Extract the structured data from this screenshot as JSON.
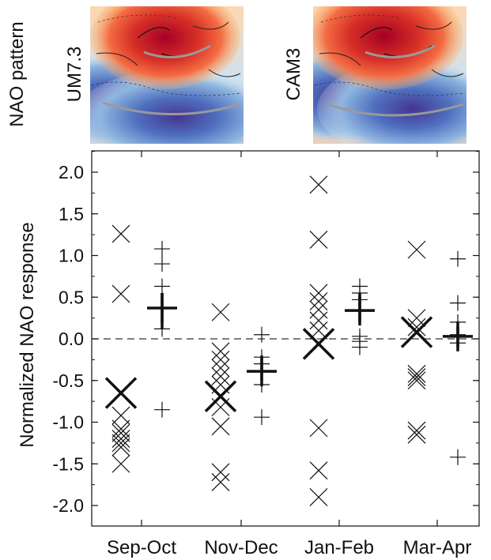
{
  "header": {
    "row_label": "NAO pattern",
    "panels": [
      {
        "label": "UM7.3"
      },
      {
        "label": "CAM3"
      }
    ]
  },
  "chart_data": {
    "type": "scatter",
    "title": "",
    "xlabel": "",
    "ylabel": "Normalized NAO response",
    "categories": [
      "Sep-Oct",
      "Nov-Dec",
      "Jan-Feb",
      "Mar-Apr"
    ],
    "ylim": [
      -2.25,
      2.25
    ],
    "yticks": [
      "-2.0",
      "-1.5",
      "-1.0",
      "-0.5",
      "0.0",
      "0.5",
      "1.0",
      "1.5",
      "2.0"
    ],
    "reference_line": 0.0,
    "series": [
      {
        "marker": "x",
        "members": [
          [
            1.26,
            0.54,
            -0.92,
            -1.08,
            -1.13,
            -1.2,
            -1.25,
            -1.3,
            -1.5
          ],
          [
            0.32,
            -0.15,
            -0.25,
            -0.35,
            -0.45,
            -0.55,
            -0.82,
            -1.05,
            -1.6,
            -1.72
          ],
          [
            1.85,
            1.19,
            0.55,
            0.45,
            0.35,
            0.22,
            0.1,
            -1.07,
            -1.58,
            -1.9
          ],
          [
            1.07,
            0.25,
            0.14,
            -0.42,
            -0.46,
            -0.5,
            -1.1,
            -1.15
          ]
        ],
        "means": [
          -0.65,
          -0.69,
          -0.06,
          0.08
        ]
      },
      {
        "marker": "+",
        "members": [
          [
            1.08,
            0.9,
            0.63,
            0.12,
            -0.85
          ],
          [
            0.05,
            -0.22,
            -0.3,
            -0.55,
            -0.94
          ],
          [
            0.63,
            0.55,
            0.47,
            0.03,
            -0.03,
            -0.1
          ],
          [
            0.96,
            0.43,
            0.2,
            0.05,
            -0.05,
            -1.42
          ]
        ],
        "means": [
          0.37,
          -0.39,
          0.34,
          0.03
        ],
        "ranges": [
          [
            0.12,
            0.55
          ],
          [
            -0.5,
            -0.2
          ],
          [
            0.2,
            0.55
          ],
          [
            -0.1,
            0.15
          ]
        ]
      }
    ],
    "grid": false
  },
  "colors": {
    "warm_core": "#a50026",
    "warm": "#e8543a",
    "cool": "#4f7fc0",
    "cool_core": "#45358f",
    "marker": "#111111",
    "arc": "#9a9a9a"
  }
}
